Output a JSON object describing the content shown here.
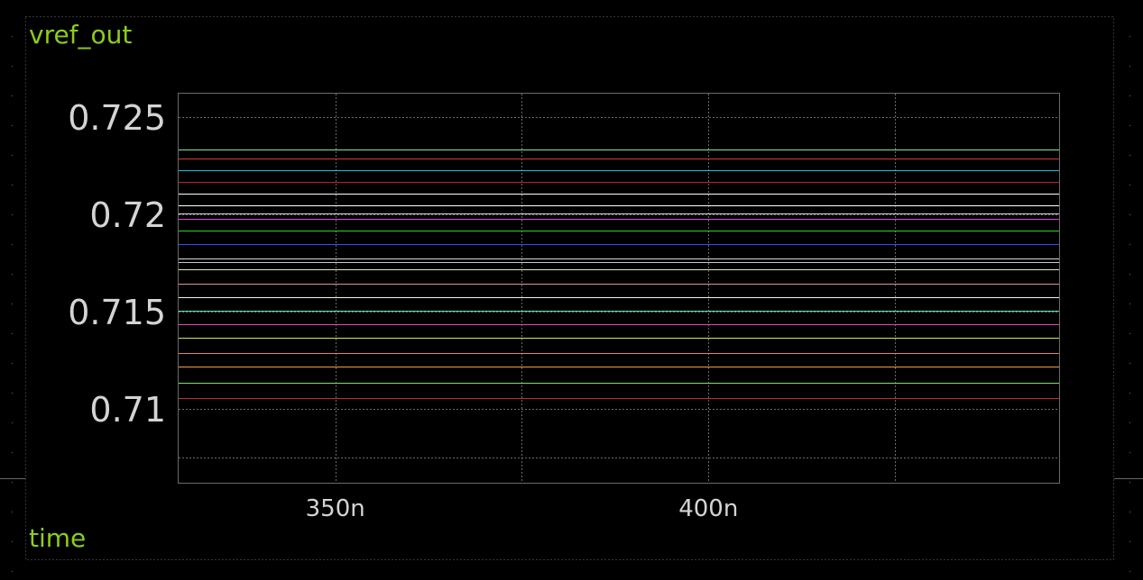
{
  "chart_data": {
    "type": "line",
    "title": "vref_out",
    "xlabel": "time",
    "ylabel": "",
    "x_tick_labels": [
      {
        "value": 3.5e-07,
        "label": "350n"
      },
      {
        "value": 4e-07,
        "label": "400n"
      }
    ],
    "y_tick_labels": [
      {
        "value": 0.725,
        "label": "0.725"
      },
      {
        "value": 0.72,
        "label": "0.72"
      },
      {
        "value": 0.715,
        "label": "0.715"
      },
      {
        "value": 0.71,
        "label": "0.71"
      }
    ],
    "xlim": [
      3.29e-07,
      4.47e-07
    ],
    "ylim": [
      0.7062,
      0.7262
    ],
    "x_minor_grid": [
      3.75e-07,
      4.25e-07
    ],
    "y_minor_grid": [
      0.7075
    ],
    "grid": true,
    "legend": "none",
    "colors": {
      "background": "#000000",
      "frame": "#6a6a6a",
      "grid": "#6a6a6a",
      "label": "#8ccc1c",
      "tick": "#d4d4d4"
    },
    "series": [
      {
        "color": "#7ee8a0",
        "values": [
          0.72335,
          0.72335
        ]
      },
      {
        "color": "#d03a3a",
        "values": [
          0.72285,
          0.72285
        ]
      },
      {
        "color": "#20c0e0",
        "values": [
          0.72225,
          0.72225
        ]
      },
      {
        "color": "#c02020",
        "values": [
          0.72165,
          0.72165
        ]
      },
      {
        "color": "#ffffff",
        "values": [
          0.72105,
          0.72105
        ]
      },
      {
        "color": "#ffffff",
        "values": [
          0.72045,
          0.72045
        ]
      },
      {
        "color": "#d8d8d8",
        "values": [
          0.72005,
          0.72005
        ]
      },
      {
        "color": "#e040e0",
        "values": [
          0.71975,
          0.71975
        ]
      },
      {
        "color": "#30d030",
        "values": [
          0.71915,
          0.71915
        ]
      },
      {
        "color": "#3050ff",
        "values": [
          0.71845,
          0.71845
        ]
      },
      {
        "color": "#d8d8d8",
        "values": [
          0.71775,
          0.71775
        ]
      },
      {
        "color": "#c8c8c8",
        "values": [
          0.71755,
          0.71755
        ]
      },
      {
        "color": "#e8e8b0",
        "values": [
          0.71715,
          0.71715
        ]
      },
      {
        "color": "#e090a0",
        "values": [
          0.71645,
          0.71645
        ]
      },
      {
        "color": "#f8f8d0",
        "values": [
          0.71575,
          0.71575
        ]
      },
      {
        "color": "#60e8c0",
        "values": [
          0.71505,
          0.71505
        ]
      },
      {
        "color": "#e050b0",
        "values": [
          0.71435,
          0.71435
        ]
      },
      {
        "color": "#d8e060",
        "values": [
          0.71365,
          0.71365
        ]
      },
      {
        "color": "#f08050",
        "values": [
          0.71285,
          0.71285
        ]
      },
      {
        "color": "#f0a040",
        "values": [
          0.71215,
          0.71215
        ]
      },
      {
        "color": "#80e070",
        "values": [
          0.71135,
          0.71135
        ]
      },
      {
        "color": "#c03030",
        "values": [
          0.71055,
          0.71055
        ]
      }
    ]
  }
}
